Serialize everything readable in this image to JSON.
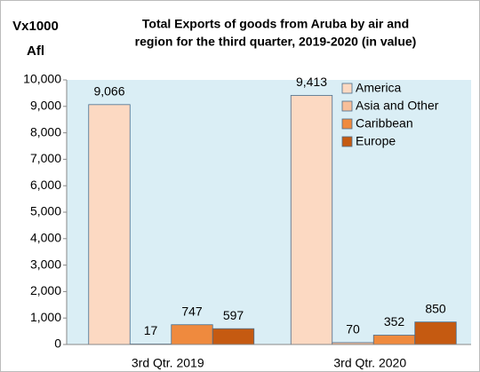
{
  "chart_data": {
    "type": "bar",
    "title": [
      "Total Exports of goods from Aruba by air and",
      "region for the third quarter, 2019-2020 (in value)"
    ],
    "y_label": [
      "Vx1000",
      "Afl"
    ],
    "categories": [
      "3rd Qtr. 2019",
      "3rd Qtr. 2020"
    ],
    "series": [
      {
        "name": "America",
        "color": "#fcd9c2",
        "values": [
          9066,
          9413
        ],
        "value_labels": [
          "9,066",
          "9,413"
        ]
      },
      {
        "name": "Asia and Other",
        "color": "#f8bf9a",
        "values": [
          17,
          70
        ],
        "value_labels": [
          "17",
          "70"
        ]
      },
      {
        "name": "Caribbean",
        "color": "#ef8a3e",
        "values": [
          747,
          352
        ],
        "value_labels": [
          "747",
          "352"
        ]
      },
      {
        "name": "Europe",
        "color": "#c55a11",
        "values": [
          597,
          850
        ],
        "value_labels": [
          "597",
          "850"
        ]
      }
    ],
    "ylim": [
      0,
      10000
    ],
    "yticks": [
      0,
      {
        "value": 1000,
        "label": "1,000"
      },
      {
        "value": 2000,
        "label": "2,000"
      },
      {
        "value": 3000,
        "label": "3,000"
      },
      {
        "value": 4000,
        "label": "4,000"
      },
      {
        "value": 5000,
        "label": "5,000"
      },
      {
        "value": 6000,
        "label": "6,000"
      },
      {
        "value": 7000,
        "label": "7,000"
      },
      {
        "value": 8000,
        "label": "8,000"
      },
      {
        "value": 9000,
        "label": "9,000"
      },
      {
        "value": 10000,
        "label": "10,000"
      }
    ],
    "legend": "top-right",
    "plot_background": "#daeef5"
  }
}
